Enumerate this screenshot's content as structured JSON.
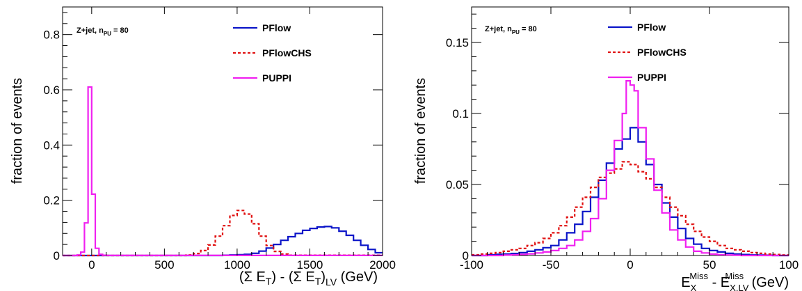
{
  "chart_data": [
    {
      "type": "line",
      "annotation": "Z+jet, n",
      "annotation_sub": "PU",
      "annotation_tail": " = 80",
      "ylabel": "fraction of events",
      "xlabel": {
        "p1": "(Σ E",
        "s1": "T",
        "p2": ") -  (Σ E",
        "s2": "T",
        "p3": ")",
        "s3": "LV",
        "p4": " (GeV)"
      },
      "xlim": [
        -200,
        2000
      ],
      "ylim": [
        0,
        0.9
      ],
      "xticks": [
        0,
        500,
        1000,
        1500,
        2000
      ],
      "xtick_labels": [
        "0",
        "500",
        "1000",
        "1500",
        "2000"
      ],
      "yticks": [
        0,
        0.2,
        0.4,
        0.6,
        0.8
      ],
      "ytick_labels": [
        "0",
        "0.2",
        "0.4",
        "0.6",
        "0.8"
      ],
      "legend_position": "top-right",
      "series": [
        {
          "name": "PFlow",
          "color": "#0a14c8",
          "dash": "solid",
          "bins": [
            -200,
            900,
            950,
            1000,
            1050,
            1100,
            1150,
            1200,
            1250,
            1300,
            1350,
            1400,
            1450,
            1500,
            1550,
            1600,
            1650,
            1700,
            1750,
            1800,
            1850,
            1900,
            1950,
            2000
          ],
          "values": [
            0,
            0.001,
            0.002,
            0.003,
            0.004,
            0.008,
            0.016,
            0.027,
            0.04,
            0.055,
            0.068,
            0.08,
            0.091,
            0.098,
            0.103,
            0.105,
            0.1,
            0.088,
            0.073,
            0.055,
            0.037,
            0.022,
            0.01
          ]
        },
        {
          "name": "PFlowCHS",
          "color": "#e01010",
          "dash": "dashed",
          "bins": [
            -200,
            650,
            700,
            750,
            800,
            850,
            900,
            950,
            1000,
            1050,
            1100,
            1150,
            1200,
            1250,
            1300,
            1350,
            2000
          ],
          "values": [
            0,
            0.002,
            0.007,
            0.018,
            0.038,
            0.07,
            0.108,
            0.145,
            0.163,
            0.15,
            0.115,
            0.07,
            0.036,
            0.015,
            0.005,
            0.001
          ]
        },
        {
          "name": "PUPPI",
          "color": "#f020f0",
          "dash": "solid",
          "bins": [
            -200,
            -100,
            -75,
            -50,
            -25,
            0,
            25,
            50,
            75,
            100,
            125,
            2000
          ],
          "values": [
            0,
            0.002,
            0.012,
            0.118,
            0.61,
            0.222,
            0.026,
            0.004,
            0.001,
            0.0005,
            0.0002
          ]
        }
      ]
    },
    {
      "type": "line",
      "annotation": "Z+jet, n",
      "annotation_sub": "PU",
      "annotation_tail": " = 80",
      "ylabel": "fraction of events",
      "xlabel": {
        "p1": "E",
        "sub1": "X",
        "sup1": "Miss",
        "p2": " - E",
        "sub2": "X,LV",
        "sup2": "Miss",
        "p3": " (GeV)"
      },
      "xlim": [
        -100,
        100
      ],
      "ylim": [
        0,
        0.175
      ],
      "xticks": [
        -100,
        -50,
        0,
        50,
        100
      ],
      "xtick_labels": [
        "-100",
        "-50",
        "0",
        "50",
        "100"
      ],
      "yticks": [
        0,
        0.05,
        0.1,
        0.15
      ],
      "ytick_labels": [
        "0",
        "0.05",
        "0.1",
        "0.15"
      ],
      "legend_position": "top-right",
      "series": [
        {
          "name": "PFlow",
          "color": "#0a14c8",
          "dash": "solid",
          "bins": [
            -100,
            -90,
            -85,
            -80,
            -75,
            -70,
            -65,
            -60,
            -55,
            -50,
            -45,
            -40,
            -35,
            -30,
            -25,
            -20,
            -15,
            -10,
            -5,
            0,
            5,
            10,
            15,
            20,
            25,
            30,
            35,
            40,
            45,
            50,
            55,
            60,
            65,
            70,
            75,
            80,
            85,
            90,
            100
          ],
          "values": [
            0,
            0.0005,
            0.0008,
            0.001,
            0.0014,
            0.002,
            0.003,
            0.004,
            0.0055,
            0.007,
            0.011,
            0.016,
            0.022,
            0.031,
            0.041,
            0.053,
            0.065,
            0.075,
            0.082,
            0.09,
            0.08,
            0.064,
            0.05,
            0.037,
            0.027,
            0.019,
            0.012,
            0.008,
            0.005,
            0.0035,
            0.0025,
            0.0015,
            0.001,
            0.0007,
            0.0004,
            0.0003,
            0.0002,
            0
          ]
        },
        {
          "name": "PFlowCHS",
          "color": "#e01010",
          "dash": "dashed",
          "bins": [
            -100,
            -95,
            -90,
            -85,
            -80,
            -75,
            -70,
            -65,
            -60,
            -55,
            -50,
            -45,
            -40,
            -35,
            -30,
            -25,
            -20,
            -15,
            -10,
            -5,
            0,
            5,
            10,
            15,
            20,
            25,
            30,
            35,
            40,
            45,
            50,
            55,
            60,
            65,
            70,
            75,
            80,
            85,
            90,
            95,
            100
          ],
          "values": [
            0.0005,
            0.001,
            0.0015,
            0.002,
            0.003,
            0.004,
            0.005,
            0.007,
            0.009,
            0.012,
            0.016,
            0.021,
            0.027,
            0.034,
            0.041,
            0.048,
            0.055,
            0.058,
            0.061,
            0.066,
            0.064,
            0.059,
            0.054,
            0.048,
            0.041,
            0.034,
            0.028,
            0.022,
            0.017,
            0.013,
            0.01,
            0.007,
            0.005,
            0.004,
            0.003,
            0.002,
            0.0015,
            0.001,
            0.0007,
            0.0004
          ]
        },
        {
          "name": "PUPPI",
          "color": "#f020f0",
          "dash": "solid",
          "bins": [
            -100,
            -80,
            -75,
            -70,
            -65,
            -60,
            -55,
            -50,
            -45,
            -40,
            -35,
            -30,
            -25,
            -20,
            -15,
            -10,
            -5,
            -2.5,
            0,
            2.5,
            5,
            10,
            15,
            20,
            25,
            30,
            35,
            40,
            45,
            50,
            55,
            60,
            65,
            70,
            100
          ],
          "values": [
            0,
            0.0003,
            0.0005,
            0.0008,
            0.0012,
            0.0018,
            0.0025,
            0.0035,
            0.005,
            0.007,
            0.011,
            0.017,
            0.026,
            0.04,
            0.06,
            0.081,
            0.1,
            0.123,
            0.12,
            0.116,
            0.09,
            0.068,
            0.046,
            0.03,
            0.018,
            0.011,
            0.006,
            0.003,
            0.0018,
            0.001,
            0.0006,
            0.0004,
            0.0002,
            0
          ]
        }
      ]
    }
  ]
}
